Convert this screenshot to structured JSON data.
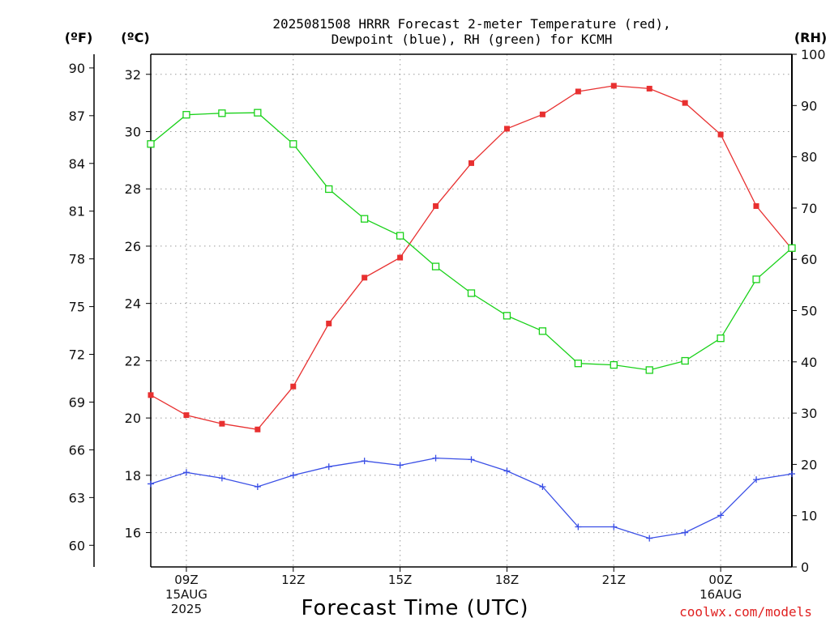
{
  "title_line1": "2025081508 HRRR Forecast 2-meter Temperature (red),",
  "title_line2": "Dewpoint (blue), RH (green) for KCMH",
  "unit_f": "(ºF)",
  "unit_c": "(ºC)",
  "unit_rh": "(RH)",
  "x_axis_label": "Forecast Time (UTC)",
  "credit": "coolwx.com/models",
  "x_ticks": [
    {
      "hour": 9,
      "lines": [
        "09Z",
        "15AUG",
        "2025"
      ]
    },
    {
      "hour": 12,
      "lines": [
        "12Z"
      ]
    },
    {
      "hour": 15,
      "lines": [
        "15Z"
      ]
    },
    {
      "hour": 18,
      "lines": [
        "18Z"
      ]
    },
    {
      "hour": 21,
      "lines": [
        "21Z"
      ]
    },
    {
      "hour": 24,
      "lines": [
        "00Z",
        "16AUG"
      ]
    }
  ],
  "chart_data": {
    "type": "line",
    "xlabel": "Forecast Time (UTC)",
    "x_hours_utc": [
      8,
      9,
      10,
      11,
      12,
      13,
      14,
      15,
      16,
      17,
      18,
      19,
      20,
      21,
      22,
      23,
      24,
      25,
      26
    ],
    "x_range_hours": [
      8,
      26
    ],
    "grid": true,
    "axes": {
      "celsius": {
        "ticks": [
          16,
          18,
          20,
          22,
          24,
          26,
          28,
          30,
          32
        ],
        "range": [
          14.8,
          32.7
        ]
      },
      "fahrenheit": {
        "ticks": [
          60,
          63,
          66,
          69,
          72,
          75,
          78,
          81,
          84,
          87,
          90
        ],
        "range": [
          58.64,
          90.86
        ]
      },
      "rh": {
        "ticks": [
          0,
          10,
          20,
          30,
          40,
          50,
          60,
          70,
          80,
          90,
          100
        ],
        "range": [
          0,
          100
        ]
      }
    },
    "series": [
      {
        "axis": "celsius",
        "color": "#e83030",
        "marker": "filled-square",
        "values": [
          20.8,
          20.1,
          19.8,
          19.6,
          21.1,
          23.3,
          24.9,
          25.6,
          27.4,
          28.9,
          30.1,
          30.6,
          31.4,
          31.6,
          31.5,
          31.0,
          29.9,
          27.4,
          25.9
        ]
      },
      {
        "axis": "celsius",
        "color": "#3a4fe6",
        "marker": "plus",
        "values": [
          17.7,
          18.1,
          17.9,
          17.6,
          18.0,
          18.3,
          18.5,
          18.35,
          18.6,
          18.55,
          18.15,
          17.6,
          16.2,
          16.2,
          15.8,
          16.0,
          16.6,
          17.85,
          18.05
        ]
      },
      {
        "axis": "rh",
        "color": "#19d119",
        "marker": "open-square",
        "values": [
          82.5,
          88.2,
          88.5,
          88.6,
          82.5,
          73.7,
          67.9,
          64.6,
          58.6,
          53.4,
          49.0,
          46.0,
          39.7,
          39.4,
          38.4,
          40.2,
          44.6,
          56.1,
          62.2
        ]
      }
    ]
  }
}
